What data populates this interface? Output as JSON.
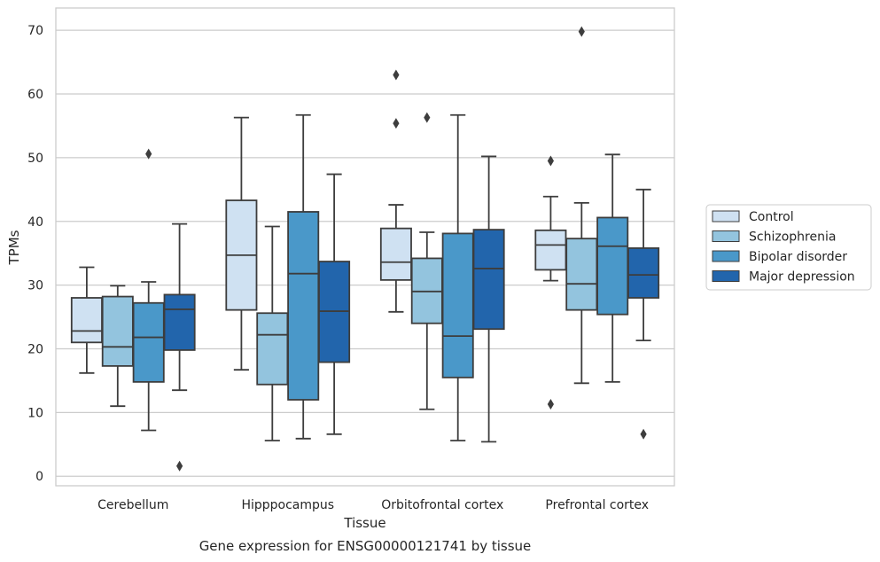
{
  "caption": "Gene expression for ENSG00000121741 by tissue",
  "chart_data": {
    "type": "box",
    "xlabel": "Tissue",
    "ylabel": "TPMs",
    "ylim": [
      -1.5,
      73.5
    ],
    "yticks": [
      0,
      10,
      20,
      30,
      40,
      50,
      60,
      70
    ],
    "grid": "horizontal",
    "legend_position": "right",
    "categories": [
      "Cerebellum",
      "Hipppocampus",
      "Orbitofrontal cortex",
      "Prefrontal cortex"
    ],
    "series": [
      {
        "name": "Control",
        "color": "#cfe1f2",
        "boxes": [
          {
            "whislo": 16.2,
            "q1": 21.0,
            "med": 22.8,
            "q3": 28.0,
            "whishi": 32.8,
            "fliers": []
          },
          {
            "whislo": 16.7,
            "q1": 26.1,
            "med": 34.7,
            "q3": 43.3,
            "whishi": 56.3,
            "fliers": []
          },
          {
            "whislo": 25.8,
            "q1": 30.8,
            "med": 33.6,
            "q3": 38.9,
            "whishi": 42.6,
            "fliers": [
              63.0,
              55.4
            ]
          },
          {
            "whislo": 30.7,
            "q1": 32.4,
            "med": 36.3,
            "q3": 38.6,
            "whishi": 43.9,
            "fliers": [
              49.5,
              11.3
            ]
          }
        ]
      },
      {
        "name": "Schizophrenia",
        "color": "#93c4de",
        "boxes": [
          {
            "whislo": 11.0,
            "q1": 17.3,
            "med": 20.3,
            "q3": 28.2,
            "whishi": 29.9,
            "fliers": []
          },
          {
            "whislo": 5.6,
            "q1": 14.4,
            "med": 22.2,
            "q3": 25.6,
            "whishi": 39.2,
            "fliers": []
          },
          {
            "whislo": 10.5,
            "q1": 24.0,
            "med": 29.0,
            "q3": 34.2,
            "whishi": 38.3,
            "fliers": [
              56.3
            ]
          },
          {
            "whislo": 14.6,
            "q1": 26.1,
            "med": 30.2,
            "q3": 37.3,
            "whishi": 42.9,
            "fliers": [
              69.8
            ]
          }
        ]
      },
      {
        "name": "Bipolar disorder",
        "color": "#4a98c9",
        "boxes": [
          {
            "whislo": 7.2,
            "q1": 14.8,
            "med": 21.8,
            "q3": 27.2,
            "whishi": 30.5,
            "fliers": [
              50.6
            ]
          },
          {
            "whislo": 5.9,
            "q1": 12.0,
            "med": 31.8,
            "q3": 41.5,
            "whishi": 56.7,
            "fliers": []
          },
          {
            "whislo": 5.6,
            "q1": 15.5,
            "med": 22.0,
            "q3": 38.1,
            "whishi": 56.7,
            "fliers": []
          },
          {
            "whislo": 14.8,
            "q1": 25.4,
            "med": 36.1,
            "q3": 40.6,
            "whishi": 50.5,
            "fliers": []
          }
        ]
      },
      {
        "name": "Major depression",
        "color": "#2265ac",
        "boxes": [
          {
            "whislo": 13.5,
            "q1": 19.8,
            "med": 26.2,
            "q3": 28.5,
            "whishi": 39.6,
            "fliers": [
              1.6
            ]
          },
          {
            "whislo": 6.6,
            "q1": 17.9,
            "med": 25.9,
            "q3": 33.7,
            "whishi": 47.4,
            "fliers": []
          },
          {
            "whislo": 5.4,
            "q1": 23.1,
            "med": 32.6,
            "q3": 38.7,
            "whishi": 50.2,
            "fliers": []
          },
          {
            "whislo": 21.3,
            "q1": 28.0,
            "med": 31.6,
            "q3": 35.8,
            "whishi": 45.0,
            "fliers": [
              6.6
            ]
          }
        ]
      }
    ]
  }
}
